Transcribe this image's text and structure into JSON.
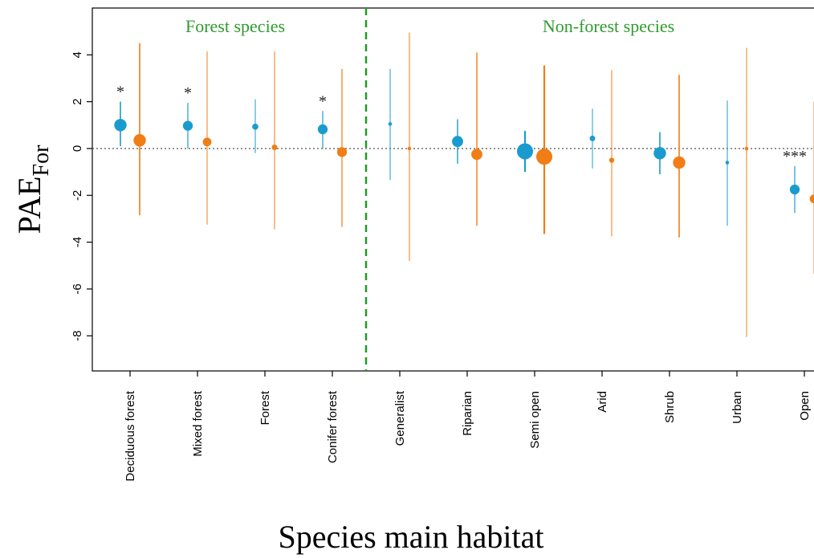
{
  "chart_data": {
    "type": "scatter",
    "ylabel_main": "PAE",
    "ylabel_sub": "For",
    "xlabel": "Species main habitat",
    "ylim": [
      -9.5,
      6
    ],
    "yticks": [
      "4",
      "2",
      "0",
      "-2",
      "-4",
      "-6",
      "-8"
    ],
    "ytick_values": [
      4,
      2,
      0,
      -2,
      -4,
      -6,
      -8
    ],
    "reference_line": 0,
    "groups": [
      {
        "label": "Forest species",
        "first": 0,
        "last": 3
      },
      {
        "label": "Non-forest species",
        "first": 4,
        "last": 10
      }
    ],
    "categories": [
      "Deciduous forest",
      "Mixed forest",
      "Forest",
      "Conifer forest",
      "Generalist",
      "Riparian",
      "Semi open",
      "Arid",
      "Shrub",
      "Urban",
      "Open"
    ],
    "significance": [
      "*",
      "*",
      "",
      "*",
      "",
      "",
      "",
      "",
      "",
      "",
      "***"
    ],
    "series_colors": [
      "#1a9bcf",
      "#f07d16"
    ],
    "series": [
      {
        "values": [
          1.0,
          0.97,
          0.93,
          0.82,
          1.05,
          0.3,
          -0.12,
          0.43,
          -0.2,
          -0.6,
          -1.75
        ],
        "lower": [
          0.1,
          0.0,
          -0.2,
          0.0,
          -1.35,
          -0.65,
          -1.0,
          -0.85,
          -1.1,
          -3.3,
          -2.75
        ],
        "upper": [
          2.0,
          1.95,
          2.1,
          1.6,
          3.4,
          1.25,
          0.75,
          1.7,
          0.7,
          2.05,
          -0.75
        ],
        "weights": [
          4,
          3,
          1.5,
          3,
          0.5,
          3.5,
          5.5,
          1.3,
          4,
          0.5,
          3
        ]
      },
      {
        "values": [
          0.35,
          0.28,
          0.05,
          -0.15,
          0.0,
          -0.25,
          -0.35,
          -0.5,
          -0.6,
          0.0,
          -2.15
        ],
        "lower": [
          -2.85,
          -3.25,
          -3.45,
          -3.35,
          -4.8,
          -3.3,
          -3.65,
          -3.75,
          -3.8,
          -8.05,
          -5.35
        ],
        "upper": [
          4.5,
          4.15,
          4.15,
          3.4,
          4.95,
          4.1,
          3.55,
          3.35,
          3.15,
          4.3,
          2.0
        ],
        "weights": [
          4,
          2.5,
          1.3,
          3,
          0.5,
          3.5,
          5.5,
          1.1,
          4,
          0.5,
          2.5
        ]
      }
    ]
  }
}
